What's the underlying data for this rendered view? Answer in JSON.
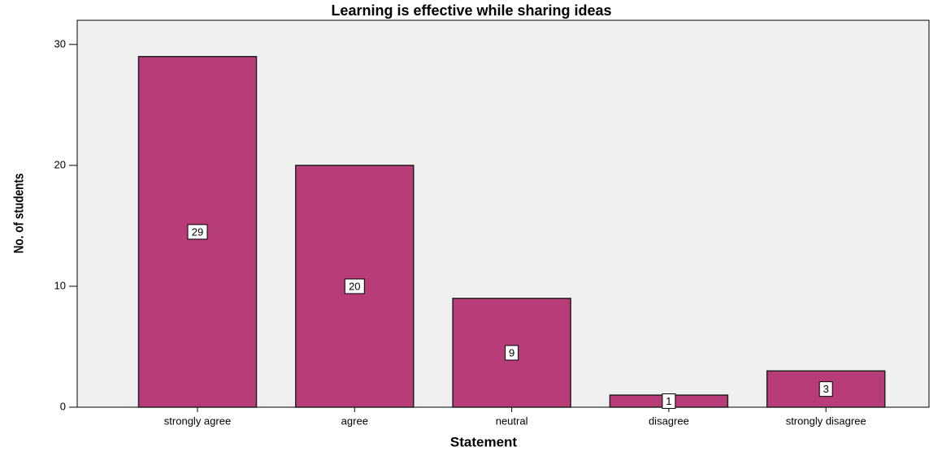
{
  "chart_data": {
    "type": "bar",
    "title": "Learning is effective while sharing ideas",
    "x_label": "Statement",
    "y_label": "No. of students",
    "categories": [
      "strongly agree",
      "agree",
      "neutral",
      "disagree",
      "strongly disagree"
    ],
    "values": [
      29,
      20,
      9,
      1,
      3
    ],
    "color": "#b83c78",
    "ylim": [
      0,
      32
    ],
    "yticks": [
      0,
      10,
      20,
      30
    ],
    "grid": false
  }
}
